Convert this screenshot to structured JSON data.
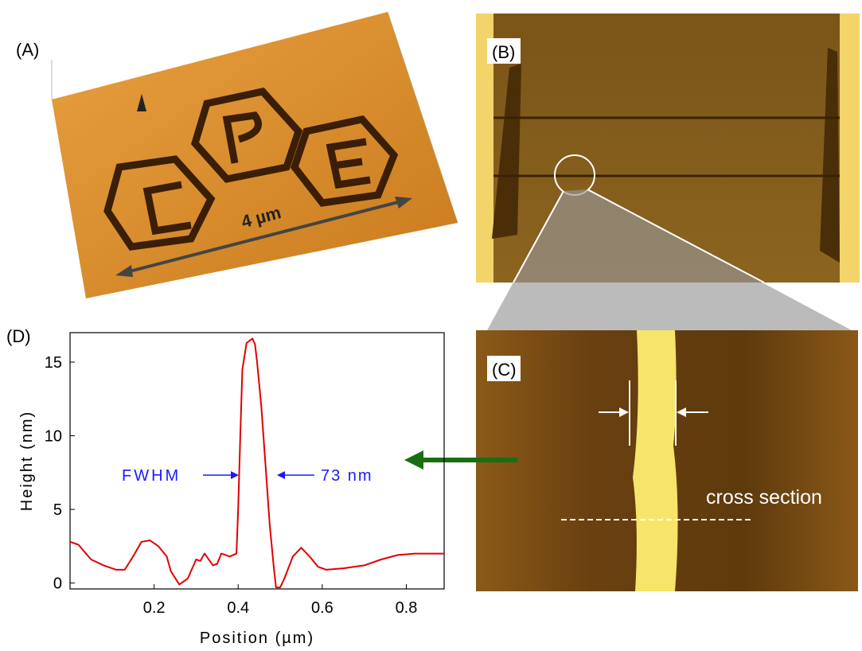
{
  "panels": {
    "a": {
      "label": "(A)",
      "scale": "4 µm"
    },
    "b": {
      "label": "(B)"
    },
    "c": {
      "label": "(C)",
      "note": "cross section"
    }
  },
  "chart_data": {
    "type": "line",
    "label": "(D)",
    "x_label": "Position (µm)",
    "y_label": "Height (nm)",
    "annotations": [
      "FWHM",
      "73 nm"
    ],
    "color": "#e00000",
    "x": [
      0.0,
      0.02,
      0.05,
      0.08,
      0.11,
      0.13,
      0.15,
      0.17,
      0.19,
      0.21,
      0.23,
      0.24,
      0.26,
      0.28,
      0.3,
      0.31,
      0.32,
      0.34,
      0.35,
      0.36,
      0.38,
      0.396,
      0.4,
      0.405,
      0.41,
      0.42,
      0.434,
      0.44,
      0.445,
      0.455,
      0.465,
      0.475,
      0.485,
      0.49,
      0.5,
      0.51,
      0.53,
      0.55,
      0.57,
      0.59,
      0.61,
      0.65,
      0.7,
      0.74,
      0.78,
      0.82,
      0.86,
      0.89
    ],
    "values": [
      2.8,
      2.6,
      1.6,
      1.2,
      0.9,
      0.9,
      1.8,
      2.8,
      2.9,
      2.5,
      1.8,
      0.8,
      -0.1,
      0.3,
      1.6,
      1.5,
      2.0,
      1.2,
      1.3,
      2.0,
      1.8,
      2.0,
      5,
      10,
      14.5,
      16.3,
      16.6,
      16.2,
      15,
      12,
      8,
      4,
      1,
      -0.3,
      -0.3,
      0.3,
      1.8,
      2.4,
      1.8,
      1.1,
      0.9,
      1.0,
      1.2,
      1.6,
      1.9,
      2.0,
      2.0,
      2.0
    ],
    "xlim": [
      0,
      0.89
    ],
    "ylim": [
      -0.4,
      17
    ],
    "xticks": [
      0.2,
      0.4,
      0.6,
      0.8
    ],
    "yticks": [
      0,
      5,
      10,
      15
    ]
  }
}
